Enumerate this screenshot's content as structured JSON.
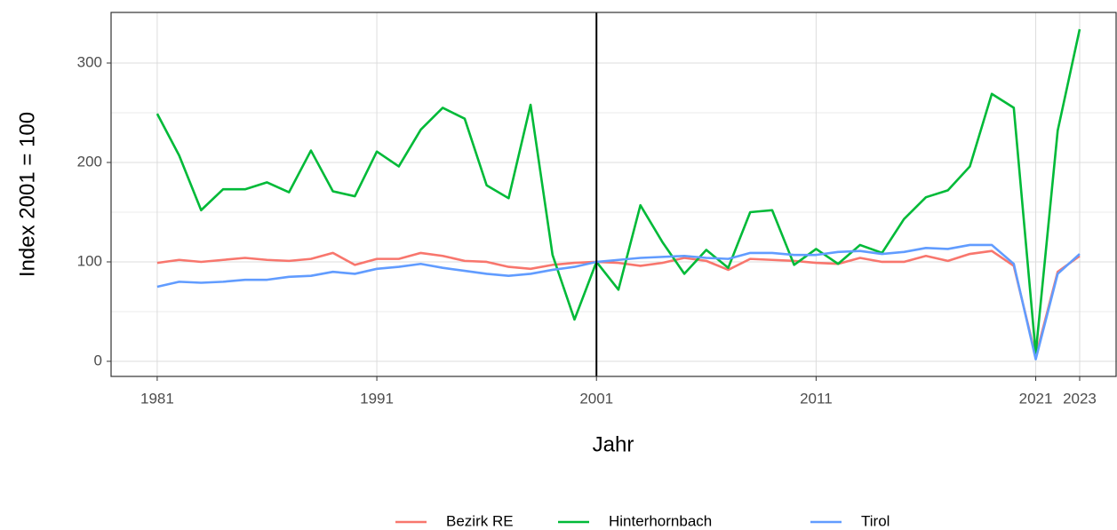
{
  "chart_data": {
    "type": "line",
    "x_label": "Jahr",
    "y_label": "Index 2001 = 100",
    "x": [
      1981,
      1982,
      1983,
      1984,
      1985,
      1986,
      1987,
      1988,
      1989,
      1990,
      1991,
      1992,
      1993,
      1994,
      1995,
      1996,
      1997,
      1998,
      1999,
      2000,
      2001,
      2002,
      2003,
      2004,
      2005,
      2006,
      2007,
      2008,
      2009,
      2010,
      2011,
      2012,
      2013,
      2014,
      2015,
      2016,
      2017,
      2018,
      2019,
      2020,
      2021,
      2022,
      2023
    ],
    "series": [
      {
        "name": "Bezirk RE",
        "color": "#F8766D",
        "values": [
          99,
          102,
          100,
          102,
          104,
          102,
          101,
          103,
          109,
          97,
          103,
          103,
          109,
          106,
          101,
          100,
          95,
          93,
          97,
          99,
          100,
          99,
          96,
          99,
          104,
          101,
          92,
          103,
          102,
          101,
          99,
          98,
          104,
          100,
          100,
          106,
          101,
          108,
          111,
          96,
          5,
          90,
          106
        ]
      },
      {
        "name": "Hinterhornbach",
        "color": "#00BA38",
        "values": [
          249,
          207,
          152,
          173,
          173,
          180,
          170,
          212,
          171,
          166,
          211,
          196,
          233,
          255,
          244,
          177,
          164,
          258,
          107,
          42,
          100,
          72,
          157,
          120,
          88,
          112,
          94,
          150,
          152,
          97,
          113,
          98,
          117,
          109,
          143,
          165,
          172,
          196,
          269,
          255,
          8,
          232,
          334
        ]
      },
      {
        "name": "Tirol",
        "color": "#619CFF",
        "values": [
          75,
          80,
          79,
          80,
          82,
          82,
          85,
          86,
          90,
          88,
          93,
          95,
          98,
          94,
          91,
          88,
          86,
          88,
          92,
          95,
          100,
          102,
          104,
          105,
          106,
          104,
          103,
          109,
          109,
          107,
          107,
          110,
          111,
          108,
          110,
          114,
          113,
          117,
          117,
          98,
          2,
          88,
          108
        ]
      }
    ],
    "xlim": [
      1978.9,
      2024.7
    ],
    "xticks": [
      1981,
      1991,
      2001,
      2011,
      2021,
      2023
    ],
    "ylim": [
      -15.2,
      350.9
    ],
    "yticks": [
      0,
      100,
      200,
      300
    ],
    "vline": 2001,
    "grid": true,
    "legend": "bottom"
  }
}
